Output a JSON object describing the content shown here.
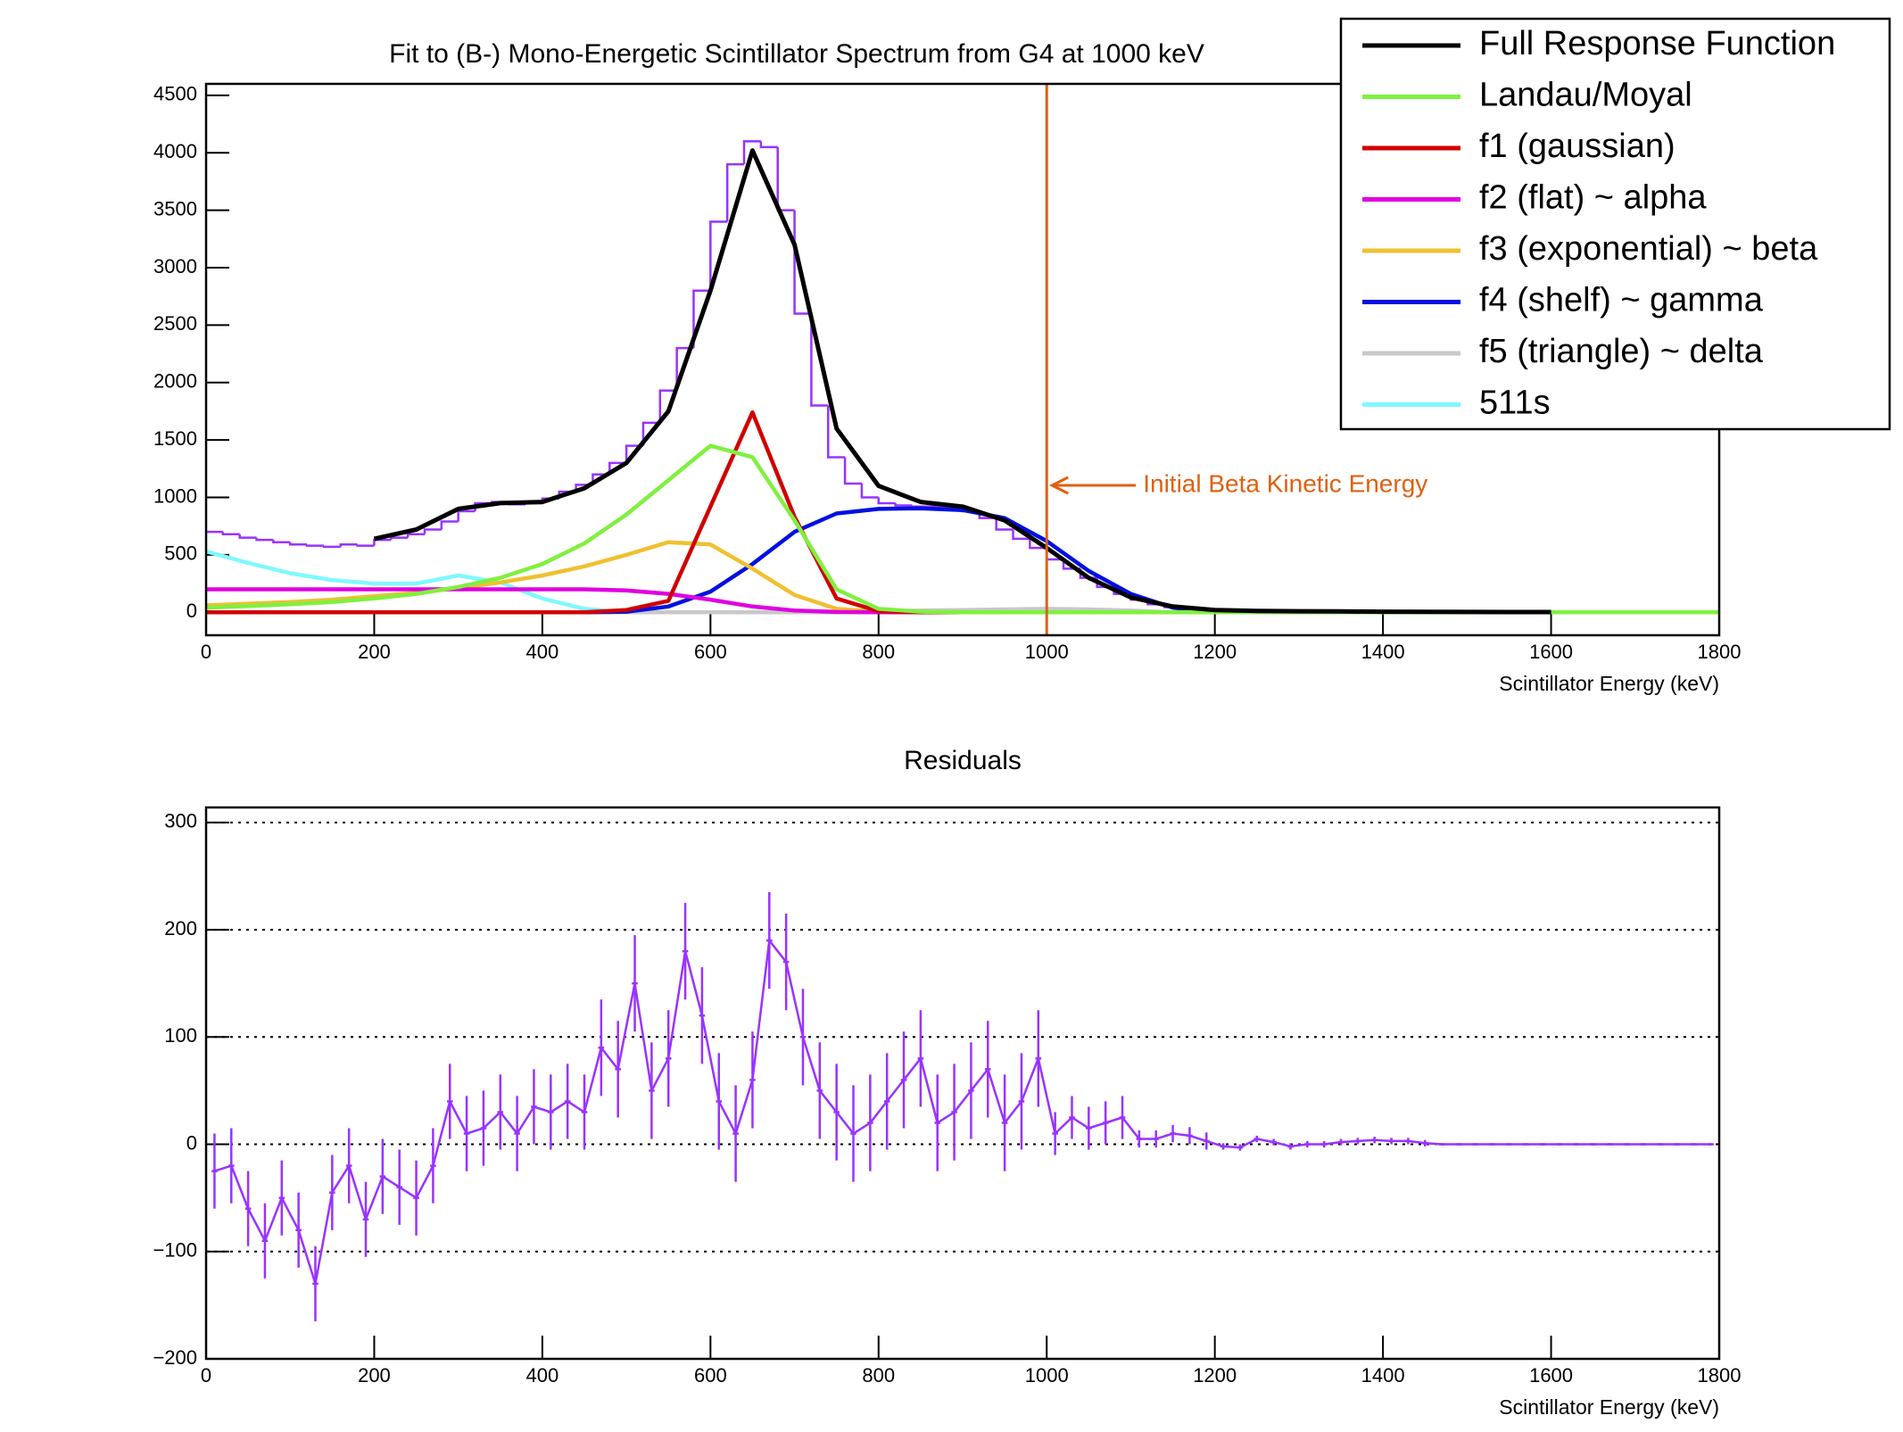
{
  "chart_data": [
    {
      "type": "line",
      "title": "Fit to (B-) Mono-Energetic Scintillator Spectrum from G4 at 1000 keV",
      "x_label": "Scintillator Energy (keV)",
      "xlim": [
        0,
        1800
      ],
      "xticks": [
        0,
        200,
        400,
        600,
        800,
        1000,
        1200,
        1400,
        1600,
        1800
      ],
      "ylim": [
        -200,
        4600
      ],
      "yticks": [
        0,
        500,
        1000,
        1500,
        2000,
        2500,
        3000,
        3500,
        4000,
        4500
      ],
      "legend": "top-right",
      "histogram": {
        "color": "#9933ff",
        "bins": [
          0,
          20,
          40,
          60,
          80,
          100,
          120,
          140,
          160,
          180,
          200,
          220,
          240,
          260,
          280,
          300,
          320,
          340,
          360,
          380,
          400,
          420,
          440,
          460,
          480,
          500,
          520,
          540,
          560,
          580,
          600,
          620,
          640,
          660,
          680,
          700,
          720,
          740,
          760,
          780,
          800,
          820,
          840,
          860,
          880,
          900,
          920,
          940,
          960,
          980,
          1000,
          1020,
          1040,
          1060,
          1080,
          1100,
          1120,
          1140,
          1160,
          1180,
          1200,
          1220,
          1240,
          1260,
          1280,
          1300,
          1320,
          1340,
          1360,
          1380,
          1400,
          1420,
          1440,
          1460,
          1480,
          1500,
          1520,
          1540,
          1560,
          1580,
          1600
        ],
        "counts": [
          700,
          680,
          650,
          630,
          610,
          590,
          580,
          570,
          590,
          580,
          630,
          650,
          680,
          720,
          790,
          880,
          950,
          960,
          940,
          950,
          990,
          1050,
          1110,
          1200,
          1300,
          1450,
          1650,
          1930,
          2300,
          2800,
          3400,
          3900,
          4100,
          4050,
          3500,
          2600,
          1800,
          1350,
          1120,
          1000,
          950,
          930,
          920,
          920,
          910,
          880,
          820,
          720,
          640,
          560,
          460,
          380,
          300,
          220,
          160,
          110,
          70,
          45,
          30,
          20,
          15,
          12,
          10,
          9,
          8,
          7,
          6,
          5,
          5,
          4,
          4,
          3,
          3,
          2,
          2,
          2,
          1,
          1,
          1,
          1
        ]
      },
      "x": [
        0,
        50,
        100,
        150,
        200,
        250,
        300,
        350,
        400,
        450,
        500,
        550,
        600,
        650,
        700,
        750,
        800,
        850,
        900,
        950,
        1000,
        1050,
        1100,
        1150,
        1200,
        1250,
        1300,
        1350,
        1400,
        1450,
        1500,
        1550,
        1600,
        1650,
        1700,
        1750,
        1800
      ],
      "series": [
        {
          "name": "Full Response Function",
          "color": "#000000",
          "values": [
            null,
            null,
            null,
            null,
            640,
            720,
            900,
            950,
            960,
            1080,
            1300,
            1750,
            2800,
            4020,
            3200,
            1600,
            1100,
            960,
            920,
            800,
            560,
            300,
            130,
            50,
            20,
            12,
            9,
            7,
            5,
            4,
            3,
            2,
            2,
            null,
            null,
            null,
            null
          ]
        },
        {
          "name": "Landau/Moyal",
          "color": "#80f040",
          "values": [
            40,
            55,
            70,
            90,
            120,
            160,
            220,
            300,
            420,
            600,
            850,
            1150,
            1450,
            1350,
            800,
            200,
            30,
            5,
            0,
            0,
            0,
            0,
            0,
            0,
            0,
            0,
            0,
            0,
            0,
            0,
            0,
            0,
            0,
            0,
            0,
            0,
            0
          ]
        },
        {
          "name": "f1 (gaussian)",
          "color": "#d00000",
          "values": [
            0,
            0,
            0,
            0,
            0,
            0,
            0,
            0,
            0,
            0,
            20,
            100,
            920,
            1740,
            830,
            120,
            10,
            0,
            0,
            0,
            0,
            0,
            0,
            0,
            0,
            0,
            0,
            0,
            0,
            0,
            0,
            0,
            0,
            0,
            0,
            0,
            0
          ]
        },
        {
          "name": "f2 (flat) ~ alpha",
          "color": "#e000e0",
          "values": [
            200,
            200,
            200,
            200,
            200,
            200,
            200,
            200,
            200,
            200,
            190,
            160,
            110,
            50,
            15,
            3,
            0,
            0,
            0,
            0,
            0,
            0,
            0,
            0,
            0,
            0,
            0,
            0,
            0,
            0,
            0,
            0,
            0,
            0,
            0,
            0,
            0
          ]
        },
        {
          "name": "f3 (exponential) ~ beta",
          "color": "#f0c030",
          "values": [
            60,
            75,
            90,
            110,
            140,
            170,
            210,
            260,
            320,
            400,
            500,
            610,
            590,
            380,
            150,
            30,
            5,
            0,
            0,
            0,
            0,
            0,
            0,
            0,
            0,
            0,
            0,
            0,
            0,
            0,
            0,
            0,
            0,
            0,
            0,
            0,
            0
          ]
        },
        {
          "name": "f4 (shelf) ~ gamma",
          "color": "#0010e0",
          "values": [
            0,
            0,
            0,
            0,
            0,
            0,
            0,
            0,
            0,
            0,
            5,
            50,
            180,
            420,
            700,
            860,
            900,
            905,
            890,
            820,
            620,
            360,
            160,
            40,
            5,
            0,
            0,
            0,
            0,
            0,
            0,
            0,
            0,
            0,
            0,
            0,
            0
          ]
        },
        {
          "name": "f5 (triangle) ~ delta",
          "color": "#c8c8c8",
          "values": [
            0,
            0,
            0,
            0,
            0,
            0,
            0,
            0,
            0,
            0,
            0,
            0,
            0,
            0,
            0,
            0,
            10,
            15,
            20,
            25,
            30,
            25,
            15,
            0,
            0,
            0,
            0,
            0,
            0,
            0,
            0,
            0,
            0,
            0,
            0,
            0,
            0
          ]
        },
        {
          "name": "511s",
          "color": "#80f8ff",
          "values": [
            530,
            430,
            340,
            280,
            250,
            250,
            320,
            260,
            120,
            30,
            0,
            0,
            0,
            0,
            0,
            0,
            0,
            0,
            0,
            0,
            0,
            0,
            0,
            0,
            0,
            0,
            0,
            0,
            0,
            0,
            0,
            0,
            0,
            0,
            0,
            0,
            0
          ]
        }
      ],
      "annotation": {
        "x": 1000,
        "label": "Initial Beta Kinetic Energy",
        "color": "#e06010"
      }
    },
    {
      "type": "errorbar",
      "title": "Residuals",
      "x_label": "Scintillator Energy (keV)",
      "xlim": [
        0,
        1800
      ],
      "xticks": [
        0,
        200,
        400,
        600,
        800,
        1000,
        1200,
        1400,
        1600,
        1800
      ],
      "ylim": [
        -200,
        314
      ],
      "yticks": [
        {
          "value": -200,
          "label": "−200"
        },
        {
          "value": -100,
          "label": "−100"
        },
        0,
        100,
        200,
        300
      ],
      "grid": true,
      "color": "#9933ff",
      "x": [
        10,
        30,
        50,
        70,
        90,
        110,
        130,
        150,
        170,
        190,
        210,
        230,
        250,
        270,
        290,
        310,
        330,
        350,
        370,
        390,
        410,
        430,
        450,
        470,
        490,
        510,
        530,
        550,
        570,
        590,
        610,
        630,
        650,
        670,
        690,
        710,
        730,
        750,
        770,
        790,
        810,
        830,
        850,
        870,
        890,
        910,
        930,
        950,
        970,
        990,
        1010,
        1030,
        1050,
        1070,
        1090,
        1110,
        1130,
        1150,
        1170,
        1190,
        1210,
        1230,
        1250,
        1270,
        1290,
        1310,
        1330,
        1350,
        1370,
        1390,
        1410,
        1430,
        1450,
        1470,
        1490,
        1510,
        1530,
        1550,
        1570,
        1590,
        1610,
        1630,
        1650,
        1670,
        1690,
        1710,
        1730,
        1750,
        1770,
        1790
      ],
      "values": [
        -25,
        -20,
        -60,
        -90,
        -50,
        -80,
        -130,
        -45,
        -20,
        -70,
        -30,
        -40,
        -50,
        -20,
        40,
        10,
        15,
        30,
        10,
        35,
        30,
        40,
        30,
        90,
        70,
        150,
        50,
        80,
        180,
        120,
        40,
        10,
        60,
        190,
        170,
        100,
        50,
        30,
        10,
        20,
        40,
        60,
        80,
        20,
        30,
        50,
        70,
        20,
        40,
        80,
        10,
        25,
        15,
        20,
        25,
        5,
        5,
        10,
        8,
        3,
        -2,
        -3,
        5,
        2,
        -2,
        0,
        0,
        2,
        3,
        4,
        3,
        3,
        1,
        0,
        0,
        0,
        0,
        0,
        0,
        0,
        0,
        0,
        0,
        0,
        0,
        0,
        0,
        0,
        0,
        0
      ],
      "errors": [
        35,
        35,
        35,
        35,
        35,
        35,
        35,
        35,
        35,
        35,
        35,
        35,
        35,
        35,
        35,
        35,
        35,
        35,
        35,
        35,
        35,
        35,
        35,
        45,
        45,
        45,
        45,
        45,
        45,
        45,
        45,
        45,
        45,
        45,
        45,
        45,
        45,
        45,
        45,
        45,
        45,
        45,
        45,
        45,
        45,
        45,
        45,
        45,
        45,
        45,
        20,
        20,
        20,
        20,
        20,
        8,
        8,
        8,
        8,
        8,
        3,
        3,
        3,
        3,
        3,
        3,
        3,
        3,
        3,
        3,
        3,
        3,
        3,
        1,
        1,
        1,
        1,
        1,
        1,
        1,
        1,
        1,
        1,
        1,
        1,
        1,
        1,
        1,
        1,
        1
      ]
    }
  ]
}
